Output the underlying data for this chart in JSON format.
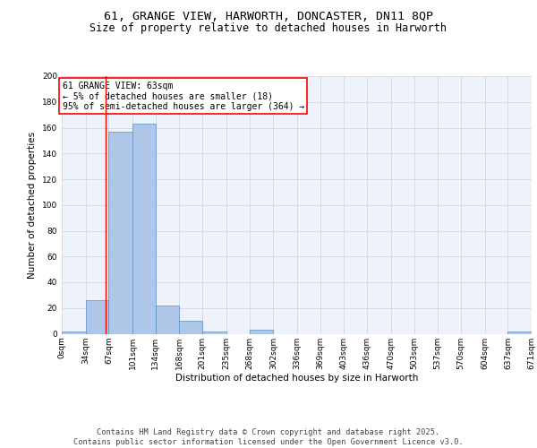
{
  "title_line1": "61, GRANGE VIEW, HARWORTH, DONCASTER, DN11 8QP",
  "title_line2": "Size of property relative to detached houses in Harworth",
  "xlabel": "Distribution of detached houses by size in Harworth",
  "ylabel": "Number of detached properties",
  "bin_edges": [
    0,
    34,
    67,
    101,
    134,
    168,
    201,
    235,
    268,
    302,
    336,
    369,
    403,
    436,
    470,
    503,
    537,
    570,
    604,
    637,
    671
  ],
  "bar_values": [
    2,
    26,
    157,
    163,
    22,
    10,
    2,
    0,
    3,
    0,
    0,
    0,
    0,
    0,
    0,
    0,
    0,
    0,
    0,
    2
  ],
  "bar_color": "#aec6e8",
  "bar_edge_color": "#5a8fc2",
  "red_line_x": 63,
  "annotation_text": "61 GRANGE VIEW: 63sqm\n← 5% of detached houses are smaller (18)\n95% of semi-detached houses are larger (364) →",
  "annotation_box_color": "white",
  "annotation_box_edgecolor": "red",
  "grid_color": "#d0d8e8",
  "background_color": "#eef2fa",
  "ylim": [
    0,
    200
  ],
  "yticks": [
    0,
    20,
    40,
    60,
    80,
    100,
    120,
    140,
    160,
    180,
    200
  ],
  "tick_labels": [
    "0sqm",
    "34sqm",
    "67sqm",
    "101sqm",
    "134sqm",
    "168sqm",
    "201sqm",
    "235sqm",
    "268sqm",
    "302sqm",
    "336sqm",
    "369sqm",
    "403sqm",
    "436sqm",
    "470sqm",
    "503sqm",
    "537sqm",
    "570sqm",
    "604sqm",
    "637sqm",
    "671sqm"
  ],
  "footer_text": "Contains HM Land Registry data © Crown copyright and database right 2025.\nContains public sector information licensed under the Open Government Licence v3.0.",
  "title_fontsize": 9.5,
  "subtitle_fontsize": 8.5,
  "axis_label_fontsize": 7.5,
  "tick_fontsize": 6.5,
  "annotation_fontsize": 7.0,
  "footer_fontsize": 6.2
}
